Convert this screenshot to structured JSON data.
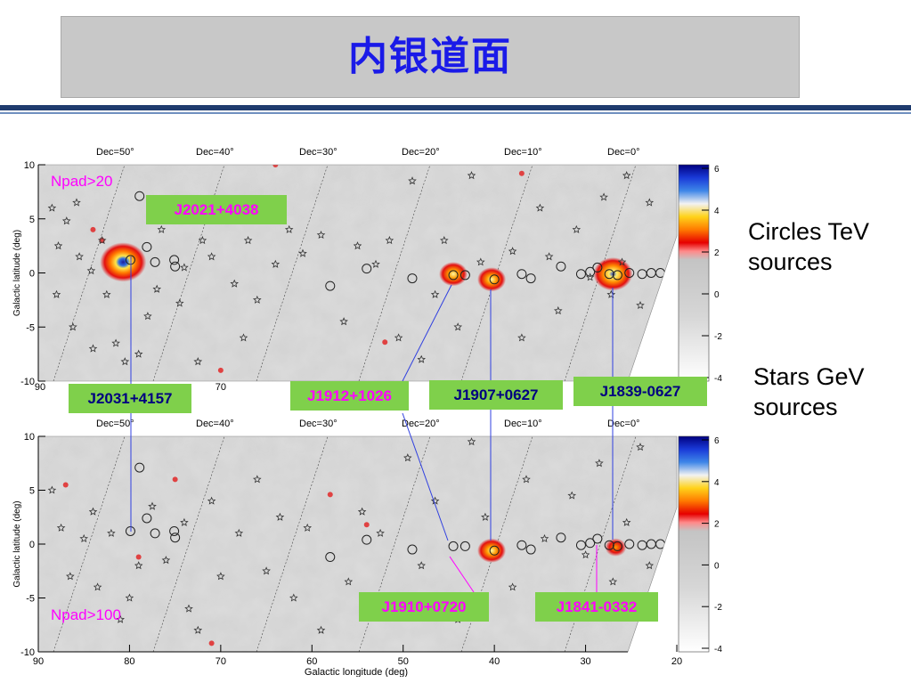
{
  "header": {
    "title": "内银道面"
  },
  "legend_notes": {
    "circles": "Circles TeV sources",
    "stars": "Stars GeV sources"
  },
  "chart_data": [
    {
      "type": "heatmap",
      "panel": "top",
      "annotation": "Npad>20",
      "ylabel": "Galactic latitude (deg)",
      "xlim": [
        90,
        20
      ],
      "ylim": [
        -10,
        10
      ],
      "x_ticks": [
        "90",
        "70"
      ],
      "y_ticks": [
        "10",
        "5",
        "0",
        "-5",
        "-10"
      ],
      "dec_labels": [
        "Dec=50°",
        "Dec=40°",
        "Dec=30°",
        "Dec=20°",
        "Dec=10°",
        "Dec=0°"
      ],
      "colorbar": {
        "ticks": [
          "6",
          "4",
          "2",
          "0",
          "-2",
          "-4"
        ],
        "range": [
          -4,
          6
        ]
      },
      "hotspots": [
        {
          "l": 80.7,
          "b": 1.0,
          "peak": 6
        },
        {
          "l": 44.5,
          "b": -0.1,
          "peak": 4
        },
        {
          "l": 40.3,
          "b": -0.6,
          "peak": 4
        },
        {
          "l": 27.0,
          "b": -0.1,
          "peak": 5
        }
      ],
      "labels": [
        {
          "text": "J2021+4038",
          "style": "green"
        },
        {
          "text": "J2031+4157",
          "style": "green"
        },
        {
          "text": "J1912+1026",
          "style": "green-magenta"
        },
        {
          "text": "J1907+0627",
          "style": "green"
        },
        {
          "text": "J1839-0627",
          "style": "green"
        }
      ]
    },
    {
      "type": "heatmap",
      "panel": "bottom",
      "annotation": "Npad>100",
      "xlabel": "Galactic longitude (deg)",
      "ylabel": "Galactic latitude (deg)",
      "xlim": [
        90,
        20
      ],
      "ylim": [
        -10,
        10
      ],
      "x_ticks": [
        "90",
        "80",
        "70",
        "60",
        "50",
        "40",
        "30",
        "20"
      ],
      "y_ticks": [
        "10",
        "5",
        "0",
        "-5",
        "-10"
      ],
      "dec_labels": [
        "Dec=50°",
        "Dec=40°",
        "Dec=30°",
        "Dec=20°",
        "Dec=10°",
        "Dec=0°"
      ],
      "colorbar": {
        "ticks": [
          "6",
          "4",
          "2",
          "0",
          "-2",
          "-4"
        ],
        "range": [
          -4,
          6
        ]
      },
      "hotspots": [
        {
          "l": 40.3,
          "b": -0.6,
          "peak": 4
        },
        {
          "l": 26.7,
          "b": -0.3,
          "peak": 3
        }
      ],
      "labels": [
        {
          "text": "J1910+0720",
          "style": "green-magenta"
        },
        {
          "text": "J1841-0332",
          "style": "green-magenta"
        }
      ]
    }
  ]
}
